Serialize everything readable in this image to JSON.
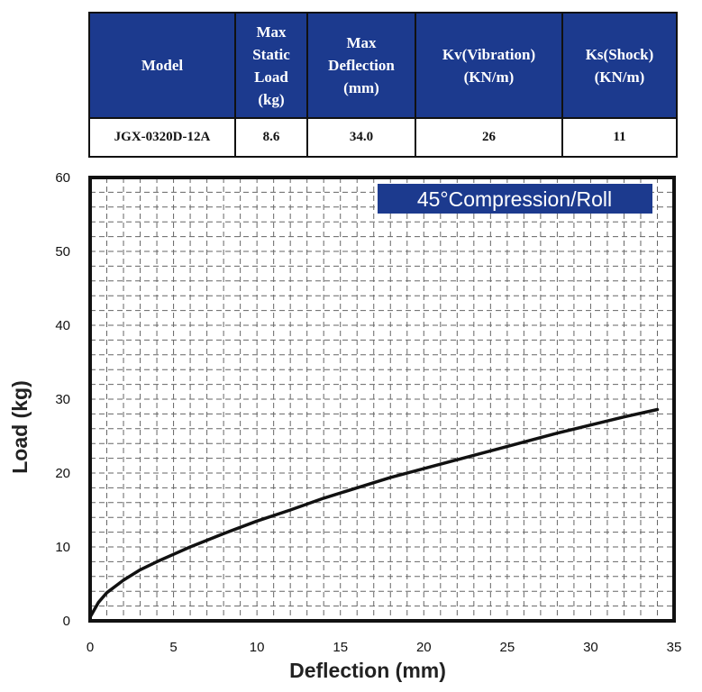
{
  "table": {
    "headers": [
      "Model",
      "Max\nStatic\nLoad\n(kg)",
      "Max\nDeflection\n(mm)",
      "Kv(Vibration)\n(KN/m)",
      "Ks(Shock)\n(KN/m)"
    ],
    "row": [
      "JGX-0320D-12A",
      "8.6",
      "34.0",
      "26",
      "11"
    ]
  },
  "colors": {
    "header_bg": "#1c3a8e",
    "badge_bg": "#1c3a8e",
    "curve": "#111111",
    "grid": "#666666"
  },
  "chart_data": {
    "type": "line",
    "title": "45°Compression/Roll",
    "xlabel": "Deflection (mm)",
    "ylabel": "Load (kg)",
    "xlim": [
      0,
      35
    ],
    "ylim": [
      0,
      60
    ],
    "xticks": [
      0,
      5,
      10,
      15,
      20,
      25,
      30,
      35
    ],
    "yticks": [
      0,
      10,
      20,
      30,
      40,
      50,
      60
    ],
    "grid": true,
    "series": [
      {
        "x": [
          0,
          0.5,
          1,
          2,
          3,
          4,
          5,
          6,
          8,
          10,
          12,
          14,
          16,
          18,
          20,
          22,
          24,
          26,
          28,
          30,
          32,
          34
        ],
        "y": [
          0.5,
          2.5,
          3.8,
          5.5,
          6.9,
          8.0,
          9.0,
          10.0,
          11.8,
          13.5,
          15.0,
          16.6,
          18.0,
          19.4,
          20.6,
          21.8,
          23.0,
          24.2,
          25.4,
          26.5,
          27.6,
          28.6
        ]
      }
    ]
  }
}
